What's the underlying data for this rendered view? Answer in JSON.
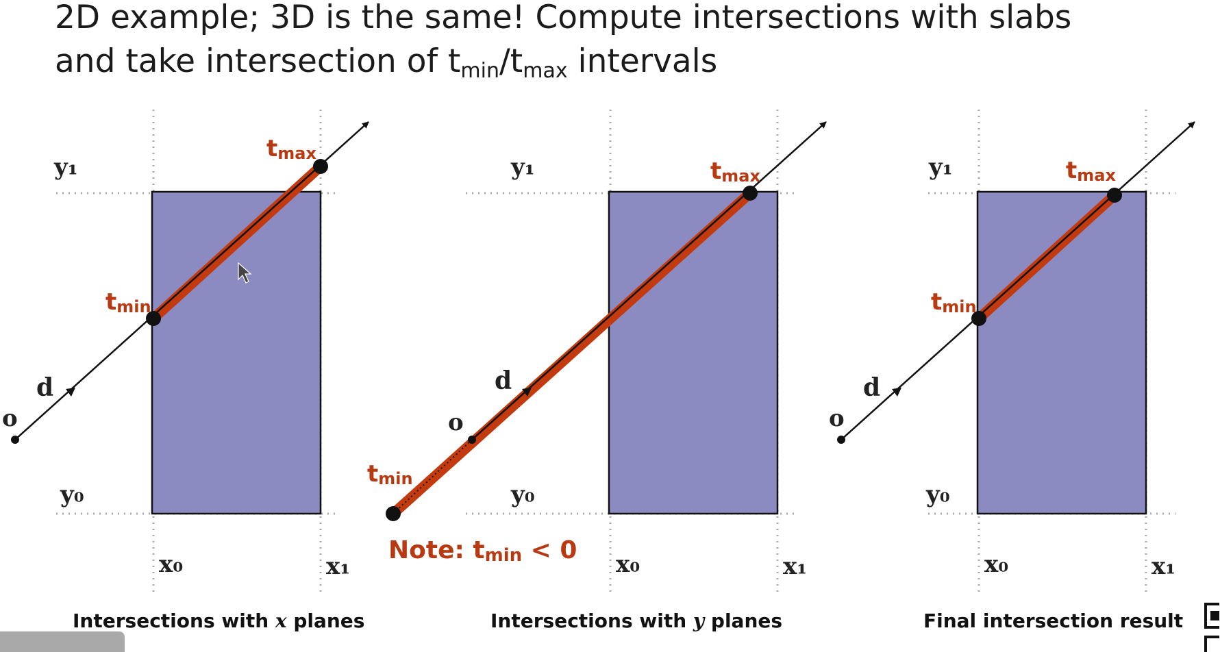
{
  "title": {
    "line1": "2D example; 3D is the same!  Compute intersections with slabs",
    "line2_pre": "and take intersection of t",
    "line2_sub1": "min",
    "line2_mid": "/t",
    "line2_sub2": "max",
    "line2_post": " intervals"
  },
  "colors": {
    "box_fill": "#8b8bc2",
    "highlight": "#c23a0e",
    "label_red": "#b83a12",
    "ink": "#111111"
  },
  "panels": [
    {
      "caption_pre": "Intersections with ",
      "caption_var": "x",
      "caption_post": " planes",
      "labels": {
        "y1": "y₁",
        "y0": "y₀",
        "x0": "x₀",
        "x1": "x₁",
        "o": "o",
        "d": "d"
      },
      "tmin": {
        "t": "t",
        "sub": "min"
      },
      "tmax": {
        "t": "t",
        "sub": "max"
      }
    },
    {
      "caption_pre": "Intersections with ",
      "caption_var": "y",
      "caption_post": " planes",
      "labels": {
        "y1": "y₁",
        "y0": "y₀",
        "x0": "x₀",
        "x1": "x₁",
        "o": "o",
        "d": "d"
      },
      "tmin": {
        "t": "t",
        "sub": "min"
      },
      "tmax": {
        "t": "t",
        "sub": "max"
      },
      "note": {
        "pre": "Note:  t",
        "sub": "min",
        "post": " < 0"
      }
    },
    {
      "caption": "Final intersection result",
      "labels": {
        "y1": "y₁",
        "y0": "y₀",
        "x0": "x₀",
        "x1": "x₁",
        "o": "o",
        "d": "d"
      },
      "tmin": {
        "t": "t",
        "sub": "min"
      },
      "tmax": {
        "t": "t",
        "sub": "max"
      }
    }
  ]
}
